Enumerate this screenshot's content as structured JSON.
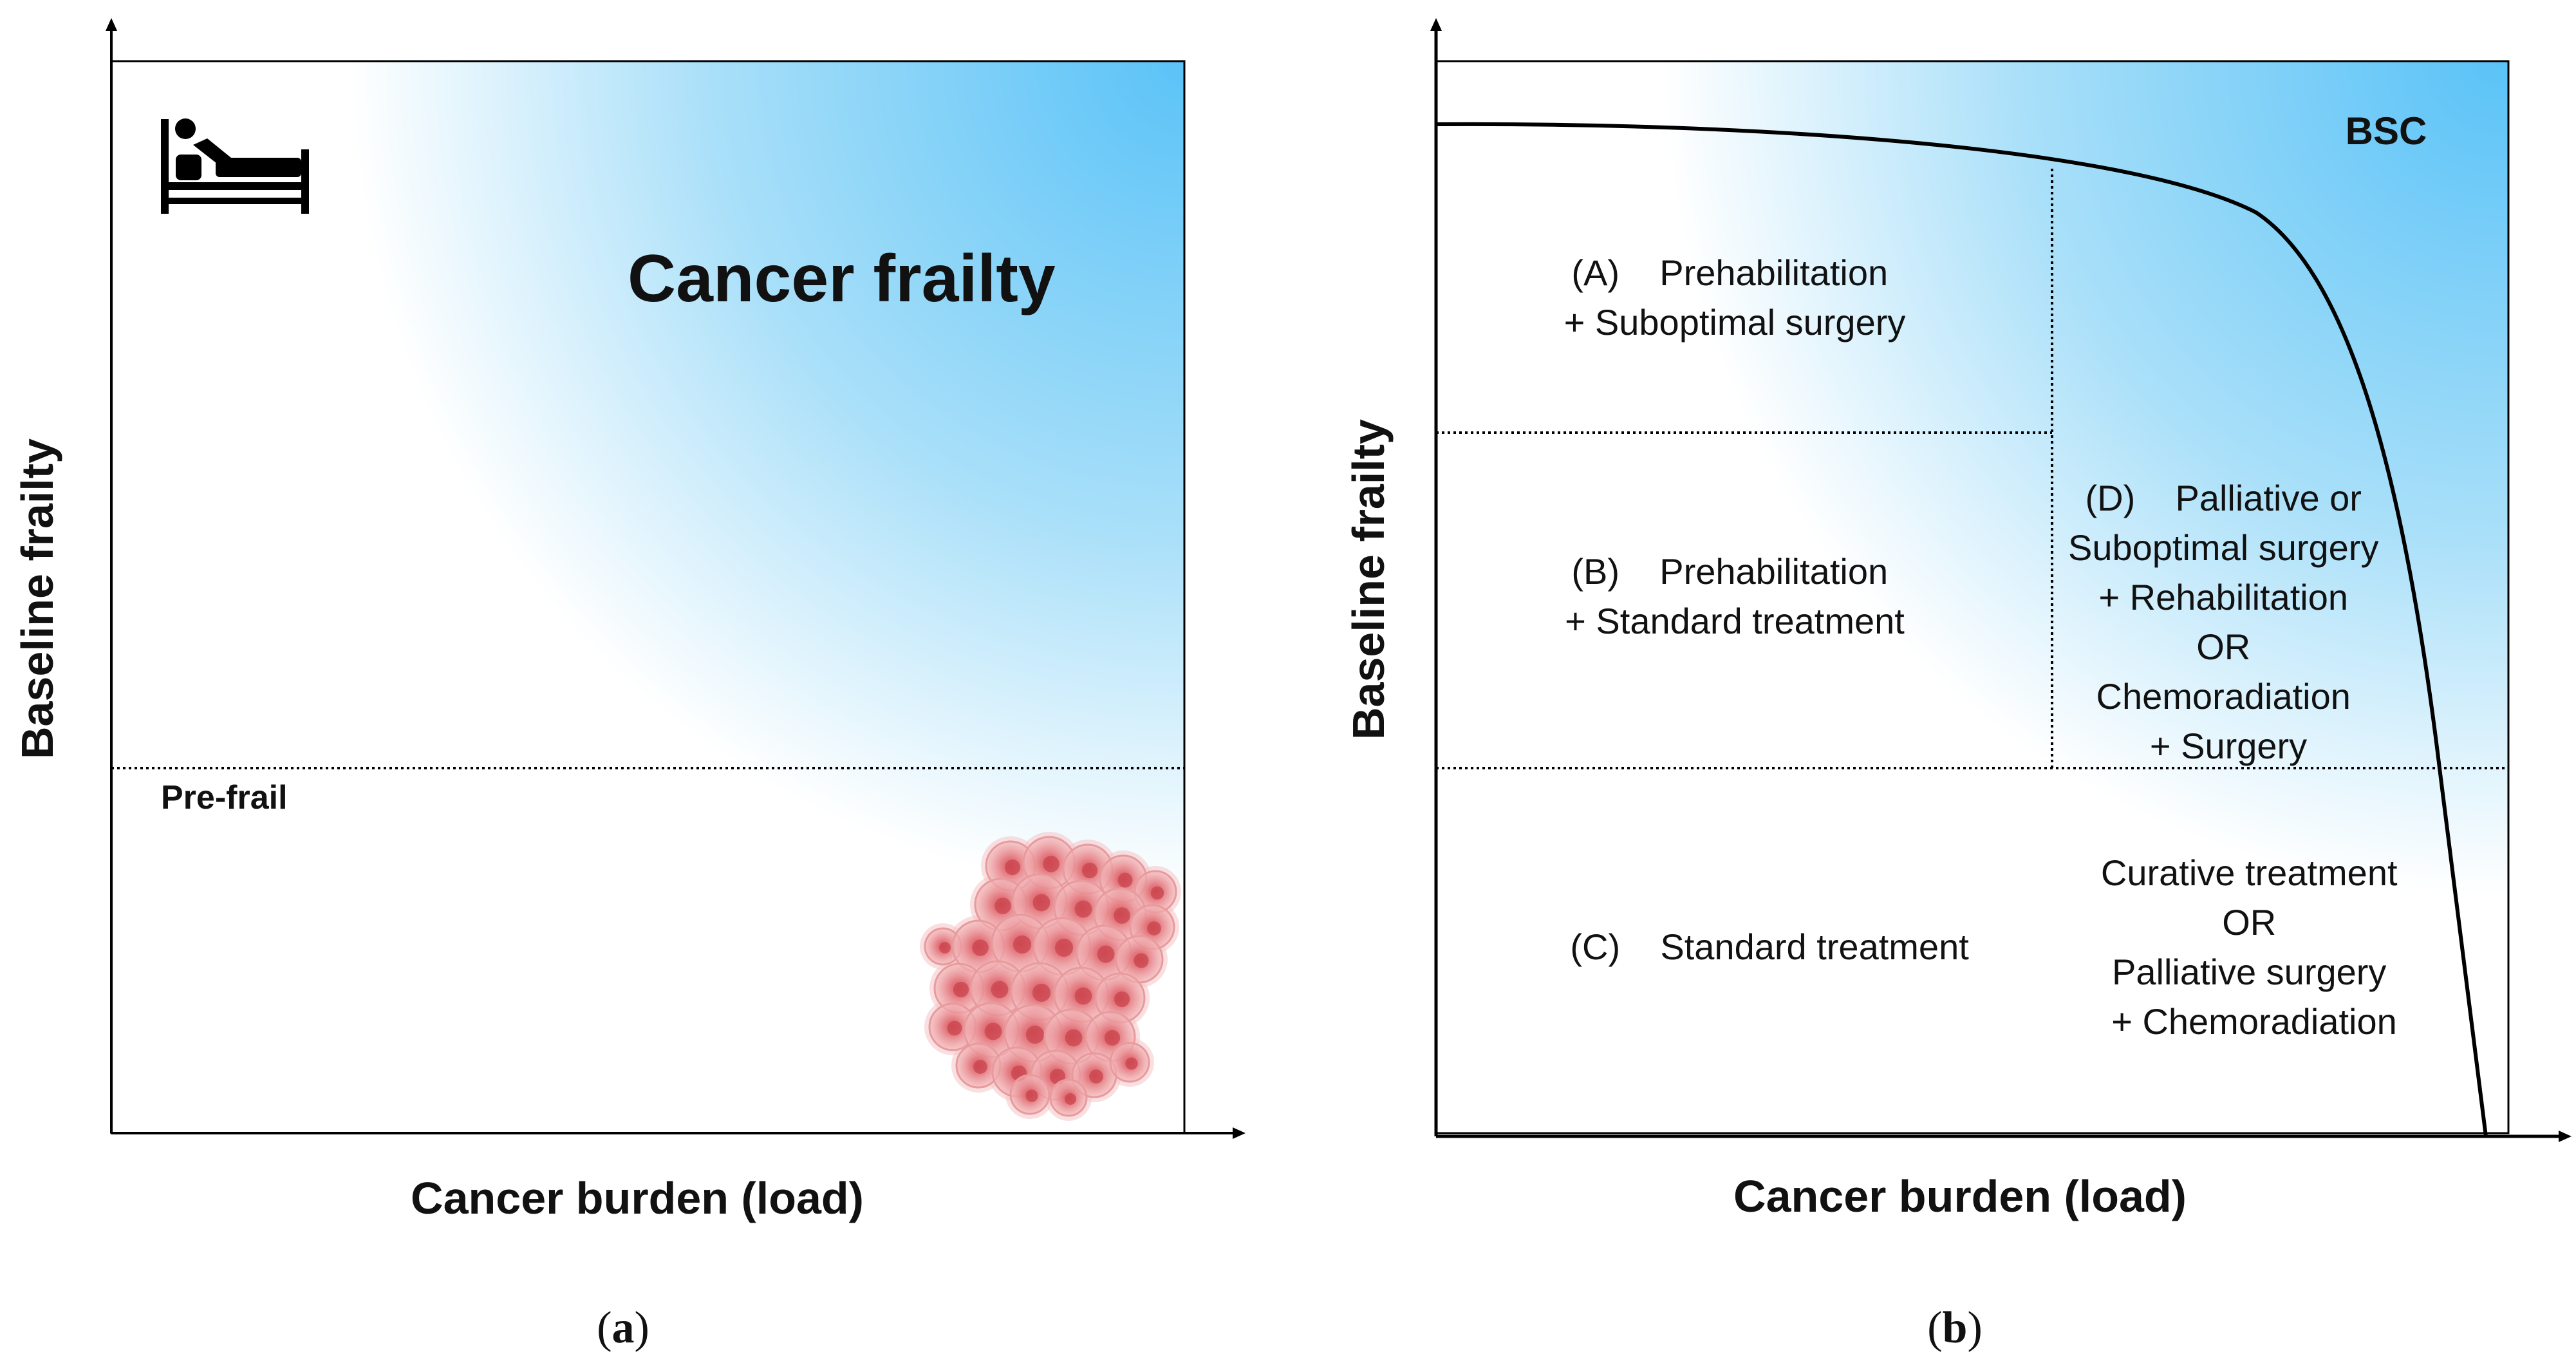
{
  "panel_a": {
    "title": "Cancer frailty",
    "prefrail": "Pre-frail",
    "y_label": "Baseline frailty",
    "x_label": "Cancer burden (load)",
    "caption": "a",
    "bed_icon": "patient-in-bed-icon",
    "tumor_icon": "cancer-cells-cluster-icon"
  },
  "panel_b": {
    "bsc": "BSC",
    "y_label": "Baseline frailty",
    "x_label": "Cancer burden (load)",
    "caption": "b",
    "region_a": [
      "(A)    Prehabilitation",
      "+ Suboptimal surgery"
    ],
    "region_b": [
      "(B)    Prehabilitation",
      "+ Standard treatment"
    ],
    "region_c": [
      "(C)    Standard treatment"
    ],
    "region_d": [
      "(D)    Palliative or",
      "Suboptimal surgery",
      "+ Rehabilitation",
      "OR",
      "Chemoradiation",
      "+ Surgery"
    ],
    "region_e": [
      "Curative treatment",
      "OR",
      "Palliative surgery",
      "+ Chemoradiation"
    ]
  },
  "colors": {
    "gradient": "#5bc3f7",
    "axis": "#000000",
    "tumor": "#e8868a"
  }
}
